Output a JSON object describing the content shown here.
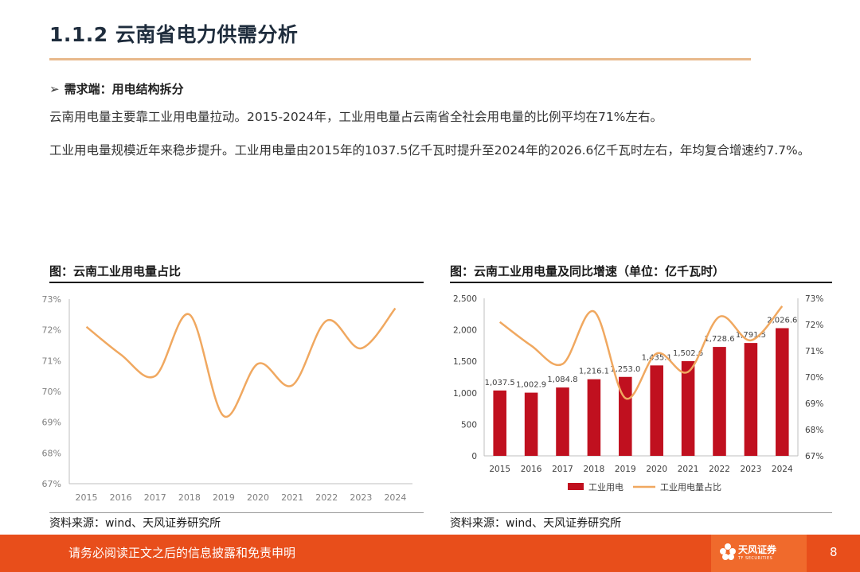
{
  "header": {
    "title": "1.1.2 云南省电力供需分析",
    "subtitle_arrow": "➢",
    "subtitle": "需求端：用电结构拆分"
  },
  "body": {
    "para1": "云南用电量主要靠工业用电量拉动。2015-2024年，工业用电量占云南省全社会用电量的比例平均在71%左右。",
    "para2": "工业用电量规模近年来稳步提升。工业用电量由2015年的1037.5亿千瓦时提升至2024年的2026.6亿千瓦时左右，年均复合增速约7.7%。"
  },
  "left_figure": {
    "title": "图：云南工业用电量占比",
    "source": "资料来源：wind、天风证券研究所"
  },
  "right_figure": {
    "title": "图：云南工业用电量及同比增速（单位：亿千瓦时）",
    "source": "资料来源：wind、天风证券研究所"
  },
  "footer": {
    "disclaimer": "请务必阅读正文之后的信息披露和免责申明",
    "logo": "天风证券",
    "logo_sub": "TF SECURITIES",
    "page": "8"
  },
  "chart_data": [
    {
      "type": "line",
      "x": [
        "2015",
        "2016",
        "2017",
        "2018",
        "2019",
        "2020",
        "2021",
        "2022",
        "2023",
        "2024"
      ],
      "series": [
        {
          "values": [
            72.1,
            71.2,
            70.5,
            72.5,
            69.2,
            70.9,
            70.2,
            72.3,
            71.4,
            72.7
          ]
        }
      ],
      "ylim": [
        67,
        73
      ],
      "yticks": [
        "67%",
        "68%",
        "69%",
        "70%",
        "71%",
        "72%",
        "73%"
      ],
      "line_color": "#f0a860",
      "grid": false
    },
    {
      "type": "bar",
      "categories": [
        "2015",
        "2016",
        "2017",
        "2018",
        "2019",
        "2020",
        "2021",
        "2022",
        "2023",
        "2024"
      ],
      "series": [
        {
          "name": "工业用电",
          "type": "bar",
          "values": [
            1037.5,
            1002.9,
            1084.8,
            1216.1,
            1253.0,
            1435.1,
            1502.6,
            1728.6,
            1791.5,
            2026.6
          ],
          "labels": [
            "1,037.5",
            "1,002.9",
            "1,084.8",
            "1,216.1",
            "1,253.0",
            "1,435.1",
            "1,502.6",
            "1,728.6",
            "1,791.5",
            "2,026.6"
          ]
        },
        {
          "name": "工业用电量占比",
          "type": "line",
          "axis": "right",
          "values": [
            72.1,
            71.2,
            70.5,
            72.5,
            69.2,
            70.9,
            70.2,
            72.3,
            71.4,
            72.7
          ]
        }
      ],
      "ylim_left": [
        0,
        2500
      ],
      "yticks_left": [
        "0",
        "500",
        "1,000",
        "1,500",
        "2,000",
        "2,500"
      ],
      "ylim_right": [
        67,
        73
      ],
      "yticks_right": [
        "67%",
        "68%",
        "69%",
        "70%",
        "71%",
        "72%",
        "73%"
      ],
      "bar_color": "#c0101f",
      "line_color": "#f0a860",
      "legend_position": "bottom",
      "grid": false
    }
  ]
}
